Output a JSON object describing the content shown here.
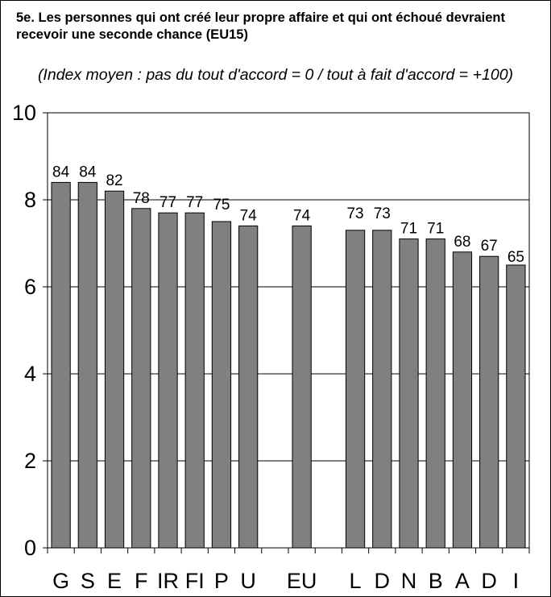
{
  "title": "5e. Les personnes qui ont créé leur propre affaire et qui ont échoué devraient recevoir une seconde chance (EU15)",
  "subtitle": "(Index moyen : pas du tout d'accord = 0 / tout à fait d'accord = +100)",
  "chart_data": {
    "type": "bar",
    "categories": [
      "G",
      "S",
      "E",
      "F",
      "IRL",
      "FI",
      "P",
      "U",
      "EU",
      "L",
      "D",
      "N",
      "B",
      "A",
      "D",
      "I"
    ],
    "values": [
      84,
      84,
      82,
      78,
      77,
      77,
      75,
      74,
      74,
      73,
      73,
      71,
      71,
      68,
      67,
      65
    ],
    "data_labels": [
      "84",
      "84",
      "82",
      "78",
      "77",
      "77",
      "75",
      "74",
      "74",
      "73",
      "73",
      "71",
      "71",
      "68",
      "67",
      "65"
    ],
    "tick_labels": [
      "G",
      "S",
      "E",
      "F",
      "IR",
      "FI",
      "P",
      "U",
      "EU",
      "L",
      "D",
      "N",
      "B",
      "A",
      "D",
      "I"
    ],
    "y_ticks": [
      "0",
      "2",
      "4",
      "6",
      "8",
      "10"
    ],
    "ylim": [
      0,
      10
    ],
    "value_scale": 10,
    "grid": true,
    "legend": "none",
    "bar_color": "#808080"
  }
}
